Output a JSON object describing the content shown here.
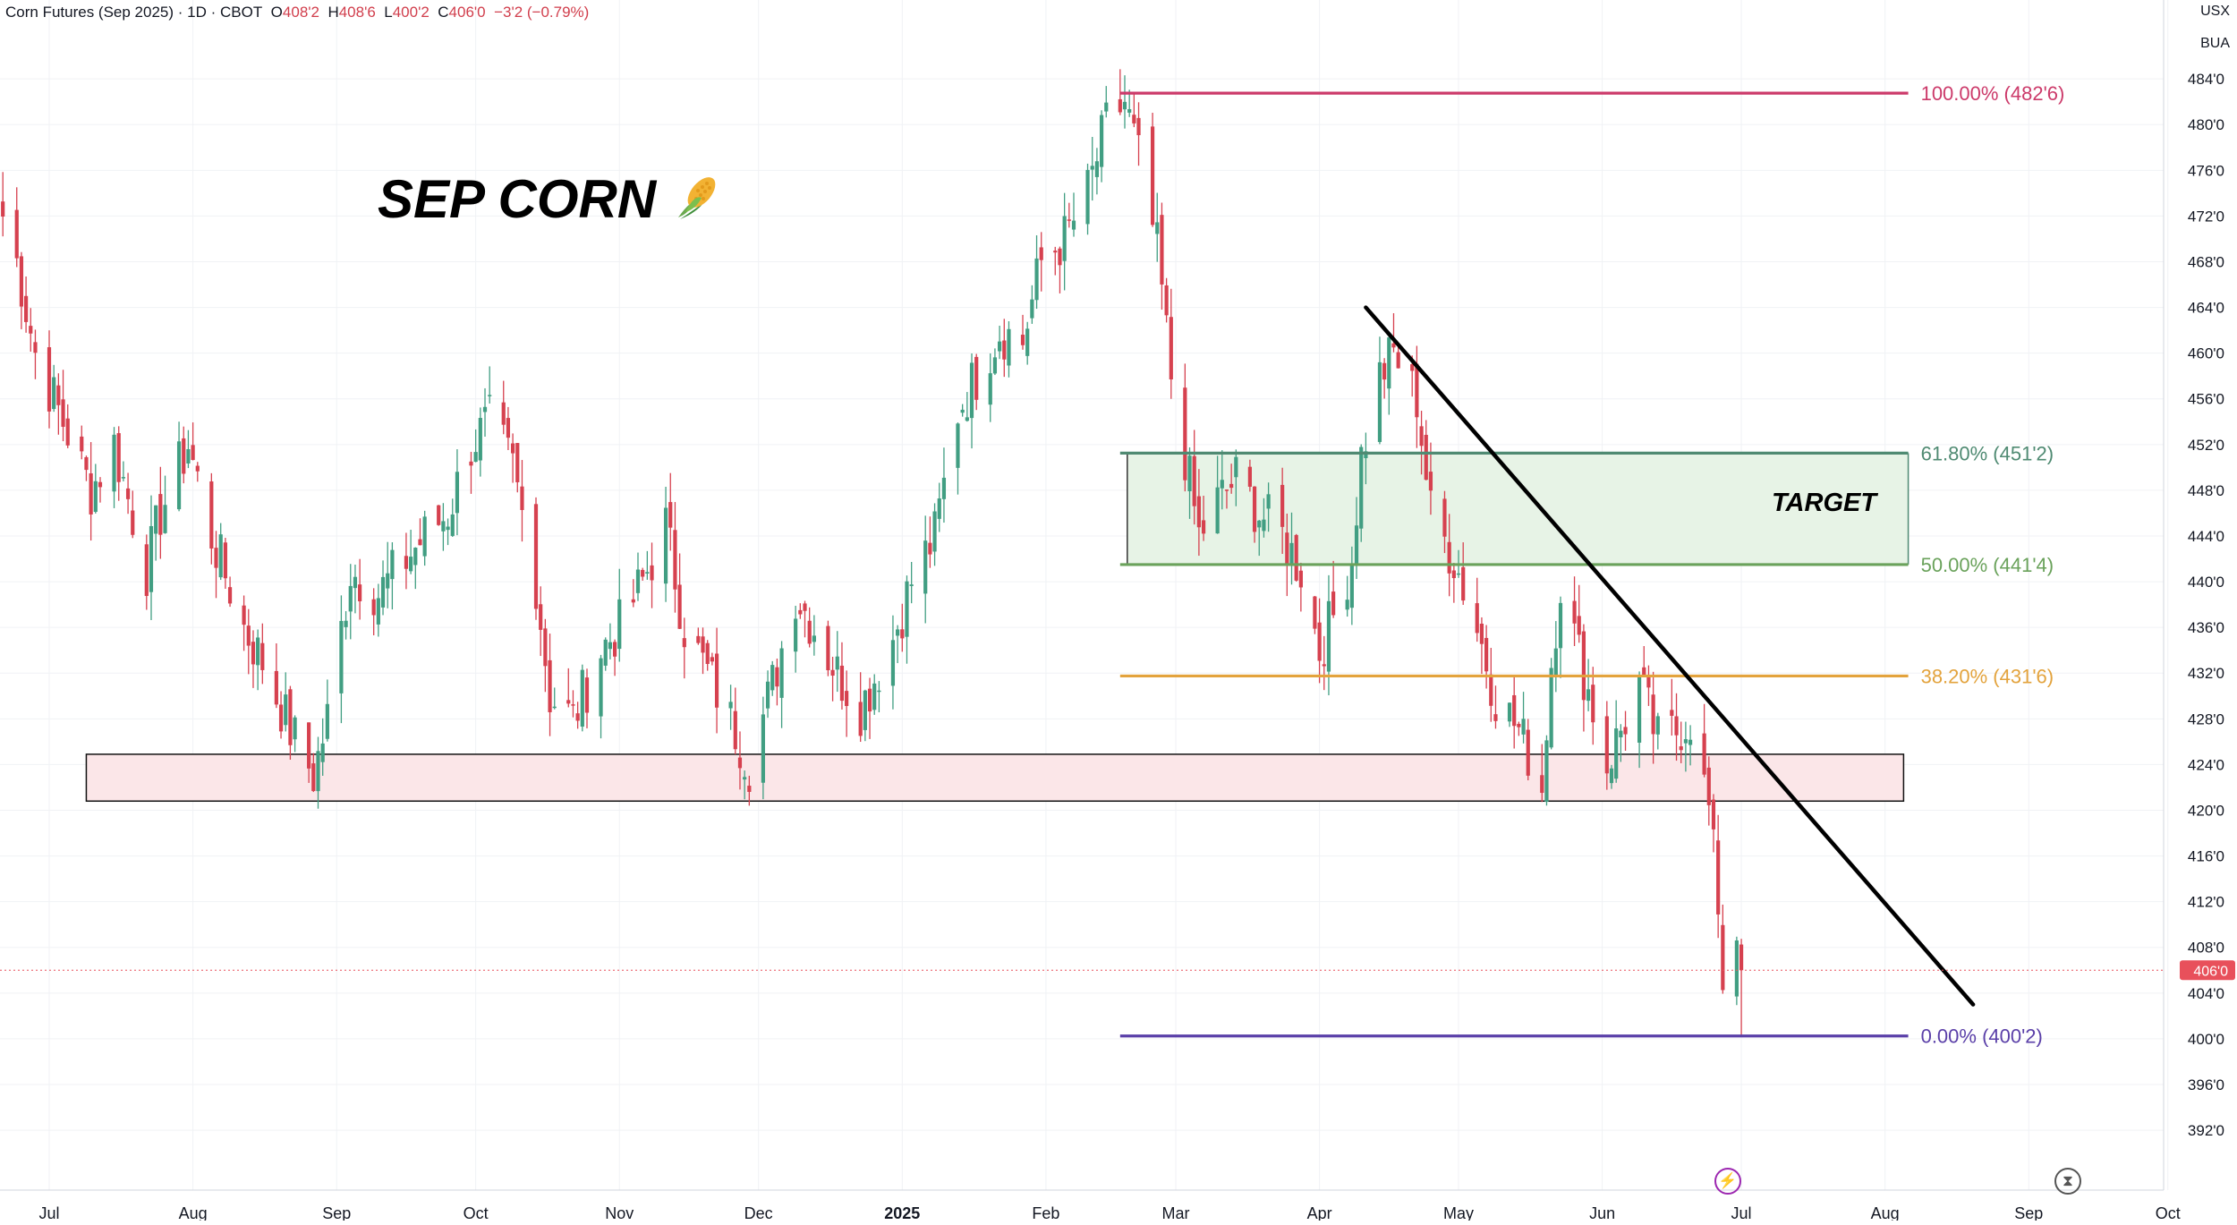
{
  "header": {
    "symbol": "Corn Futures (Sep 2025) · 1D · CBOT",
    "o_label": "O",
    "o_value": "408'2",
    "h_label": "H",
    "h_value": "408'6",
    "l_label": "L",
    "l_value": "400'2",
    "c_label": "C",
    "c_value": "406'0",
    "change": "−3'2 (−0.79%)"
  },
  "units": {
    "currency": "USX",
    "unit": "BUA"
  },
  "annotations": {
    "title": "SEP CORN",
    "title_icon": "corn-icon",
    "target_label": "TARGET"
  },
  "icons": {
    "bottom": [
      "lightning-icon",
      "hourglass-icon"
    ]
  },
  "colors": {
    "up": "#419e82",
    "down": "#d6414f",
    "fib_100": "#cc3a6a",
    "fib_618": "#4f8a72",
    "fib_50": "#6aa25b",
    "fib_382": "#e3a33d",
    "fib_0": "#5a3fa8",
    "target_fill": "#e7f3e6",
    "support_fill": "#fbe6e8",
    "price_tag": "#e8505b"
  },
  "chart_data": {
    "type": "candlestick",
    "y_ticks": [
      "392'0",
      "396'0",
      "400'0",
      "404'0",
      "408'0",
      "412'0",
      "416'0",
      "420'0",
      "424'0",
      "428'0",
      "432'0",
      "436'0",
      "440'0",
      "444'0",
      "448'0",
      "452'0",
      "456'0",
      "460'0",
      "464'0",
      "468'0",
      "472'0",
      "476'0",
      "480'0",
      "484'0"
    ],
    "y_tick_values": [
      392,
      396,
      400,
      404,
      408,
      412,
      416,
      420,
      424,
      428,
      432,
      436,
      440,
      444,
      448,
      452,
      456,
      460,
      464,
      468,
      472,
      476,
      480,
      484
    ],
    "ylim": [
      389.5,
      485.5
    ],
    "x_ticks": [
      {
        "label": "Jul",
        "date": "2024-07-01",
        "bold": false
      },
      {
        "label": "Aug",
        "date": "2024-08-01",
        "bold": false
      },
      {
        "label": "Sep",
        "date": "2024-09-01",
        "bold": false
      },
      {
        "label": "Oct",
        "date": "2024-10-01",
        "bold": false
      },
      {
        "label": "Nov",
        "date": "2024-11-01",
        "bold": false
      },
      {
        "label": "Dec",
        "date": "2024-12-01",
        "bold": false
      },
      {
        "label": "2025",
        "date": "2025-01-01",
        "bold": true
      },
      {
        "label": "Feb",
        "date": "2025-02-01",
        "bold": false
      },
      {
        "label": "Mar",
        "date": "2025-03-01",
        "bold": false
      },
      {
        "label": "Apr",
        "date": "2025-04-01",
        "bold": false
      },
      {
        "label": "May",
        "date": "2025-05-01",
        "bold": false
      },
      {
        "label": "Jun",
        "date": "2025-06-01",
        "bold": false
      },
      {
        "label": "Jul",
        "date": "2025-07-01",
        "bold": false
      },
      {
        "label": "Aug",
        "date": "2025-08-01",
        "bold": false
      },
      {
        "label": "Sep",
        "date": "2025-09-01",
        "bold": false
      },
      {
        "label": "Oct",
        "date": "2025-10-01",
        "bold": false
      }
    ],
    "last_price": "406'0",
    "last_price_value": 406.0,
    "close_path": [
      [
        "2024-06-21",
        472
      ],
      [
        "2024-06-24",
        468
      ],
      [
        "2024-06-28",
        460
      ],
      [
        "2024-07-03",
        455
      ],
      [
        "2024-07-10",
        448
      ],
      [
        "2024-07-15",
        452
      ],
      [
        "2024-07-22",
        441
      ],
      [
        "2024-07-25",
        446
      ],
      [
        "2024-07-31",
        452
      ],
      [
        "2024-08-05",
        444
      ],
      [
        "2024-08-12",
        436
      ],
      [
        "2024-08-16",
        433
      ],
      [
        "2024-08-22",
        427
      ],
      [
        "2024-08-27",
        423
      ],
      [
        "2024-08-30",
        428
      ],
      [
        "2024-09-04",
        441
      ],
      [
        "2024-09-10",
        439
      ],
      [
        "2024-09-16",
        442
      ],
      [
        "2024-09-20",
        444
      ],
      [
        "2024-09-25",
        446
      ],
      [
        "2024-09-30",
        452
      ],
      [
        "2024-10-04",
        454
      ],
      [
        "2024-10-09",
        450
      ],
      [
        "2024-10-14",
        440
      ],
      [
        "2024-10-17",
        430
      ],
      [
        "2024-10-22",
        428
      ],
      [
        "2024-10-28",
        434
      ],
      [
        "2024-11-01",
        436
      ],
      [
        "2024-11-06",
        440
      ],
      [
        "2024-11-11",
        445
      ],
      [
        "2024-11-15",
        436
      ],
      [
        "2024-11-20",
        432
      ],
      [
        "2024-11-26",
        427
      ],
      [
        "2024-11-29",
        424
      ],
      [
        "2024-12-04",
        431
      ],
      [
        "2024-12-09",
        439
      ],
      [
        "2024-12-13",
        436
      ],
      [
        "2024-12-18",
        432
      ],
      [
        "2024-12-23",
        429
      ],
      [
        "2024-12-30",
        435
      ],
      [
        "2025-01-03",
        440
      ],
      [
        "2025-01-08",
        444
      ],
      [
        "2025-01-13",
        455
      ],
      [
        "2025-01-17",
        458
      ],
      [
        "2025-01-22",
        462
      ],
      [
        "2025-01-27",
        461
      ],
      [
        "2025-01-31",
        468
      ],
      [
        "2025-02-05",
        470
      ],
      [
        "2025-02-10",
        474
      ],
      [
        "2025-02-14",
        480
      ],
      [
        "2025-02-18",
        482
      ],
      [
        "2025-02-21",
        477
      ],
      [
        "2025-02-25",
        469
      ],
      [
        "2025-02-28",
        458
      ],
      [
        "2025-03-03",
        451
      ],
      [
        "2025-03-06",
        444
      ],
      [
        "2025-03-10",
        447
      ],
      [
        "2025-03-14",
        449
      ],
      [
        "2025-03-19",
        446
      ],
      [
        "2025-03-24",
        444
      ],
      [
        "2025-03-28",
        441
      ],
      [
        "2025-04-01",
        434
      ],
      [
        "2025-04-04",
        437
      ],
      [
        "2025-04-08",
        442
      ],
      [
        "2025-04-10",
        451
      ],
      [
        "2025-04-14",
        458
      ],
      [
        "2025-04-17",
        460
      ],
      [
        "2025-04-22",
        456
      ],
      [
        "2025-04-25",
        446
      ],
      [
        "2025-04-30",
        442
      ],
      [
        "2025-05-05",
        436
      ],
      [
        "2025-05-09",
        430
      ],
      [
        "2025-05-14",
        427
      ],
      [
        "2025-05-19",
        422
      ],
      [
        "2025-05-21",
        433
      ],
      [
        "2025-05-23",
        440
      ],
      [
        "2025-05-28",
        432
      ],
      [
        "2025-06-02",
        424
      ],
      [
        "2025-06-05",
        427
      ],
      [
        "2025-06-09",
        431
      ],
      [
        "2025-06-13",
        426
      ],
      [
        "2025-06-17",
        427
      ],
      [
        "2025-06-20",
        428
      ],
      [
        "2025-06-24",
        420
      ],
      [
        "2025-06-26",
        412
      ],
      [
        "2025-06-27",
        405
      ],
      [
        "2025-06-30",
        409.5
      ],
      [
        "2025-07-01",
        406
      ]
    ],
    "fibonacci": [
      {
        "level": "100.00%",
        "price": "482'6",
        "value": 482.75,
        "color_key": "fib_100"
      },
      {
        "level": "61.80%",
        "price": "451'2",
        "value": 451.25,
        "color_key": "fib_618"
      },
      {
        "level": "50.00%",
        "price": "441'4",
        "value": 441.5,
        "color_key": "fib_50"
      },
      {
        "level": "38.20%",
        "price": "431'6",
        "value": 431.75,
        "color_key": "fib_382"
      },
      {
        "level": "0.00%",
        "price": "400'2",
        "value": 400.25,
        "color_key": "fib_0"
      }
    ],
    "fib_start_date": "2025-02-17",
    "fib_end_date": "2025-08-06",
    "target_zone": {
      "label": "TARGET",
      "from_date": "2025-02-17",
      "to_date": "2025-08-06",
      "low": 441.5,
      "high": 451.25
    },
    "support_zone": {
      "from_date": "2024-07-09",
      "to_date": "2025-08-05",
      "low": 420.8,
      "high": 424.9
    },
    "trendline": {
      "start_date": "2025-04-11",
      "start_value": 464,
      "end_date": "2025-08-20",
      "end_value": 403
    }
  }
}
